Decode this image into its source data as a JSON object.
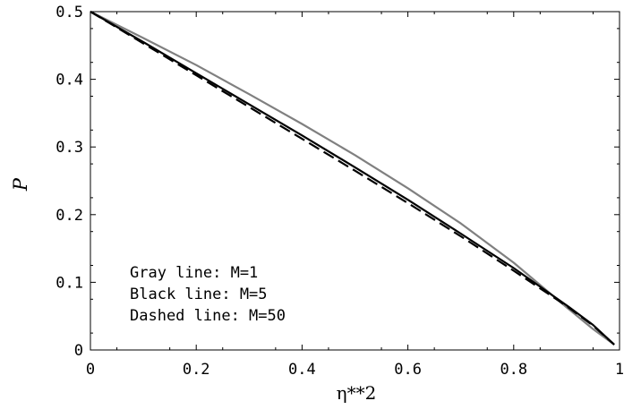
{
  "chart_data": {
    "type": "line",
    "xlabel": "η**2",
    "ylabel": "P",
    "xlim": [
      0,
      1
    ],
    "ylim": [
      0,
      0.5
    ],
    "x_ticks": [
      "0",
      "0.2",
      "0.4",
      "0.6",
      "0.8",
      "1"
    ],
    "y_ticks": [
      "0",
      "0.1",
      "0.2",
      "0.3",
      "0.4",
      "0.5"
    ],
    "grid": false,
    "legend_placement": "bottom-left",
    "annotations": [
      "Gray line: M=1",
      "Black line: M=5",
      "Dashed line: M=50"
    ],
    "x": [
      0,
      0.1,
      0.2,
      0.3,
      0.4,
      0.5,
      0.6,
      0.7,
      0.8,
      0.9,
      0.95,
      0.99
    ],
    "series": [
      {
        "color": "#808080",
        "style": "solid",
        "values": [
          0.5,
          0.461,
          0.421,
          0.378,
          0.334,
          0.288,
          0.239,
          0.187,
          0.129,
          0.063,
          0.031,
          0.008
        ]
      },
      {
        "color": "#000000",
        "style": "solid",
        "values": [
          0.5,
          0.455,
          0.409,
          0.363,
          0.317,
          0.27,
          0.222,
          0.172,
          0.121,
          0.066,
          0.037,
          0.008
        ]
      },
      {
        "color": "#000000",
        "style": "dashed",
        "values": [
          0.5,
          0.453,
          0.406,
          0.359,
          0.312,
          0.265,
          0.217,
          0.168,
          0.117,
          0.065,
          0.036,
          0.008
        ]
      }
    ]
  }
}
